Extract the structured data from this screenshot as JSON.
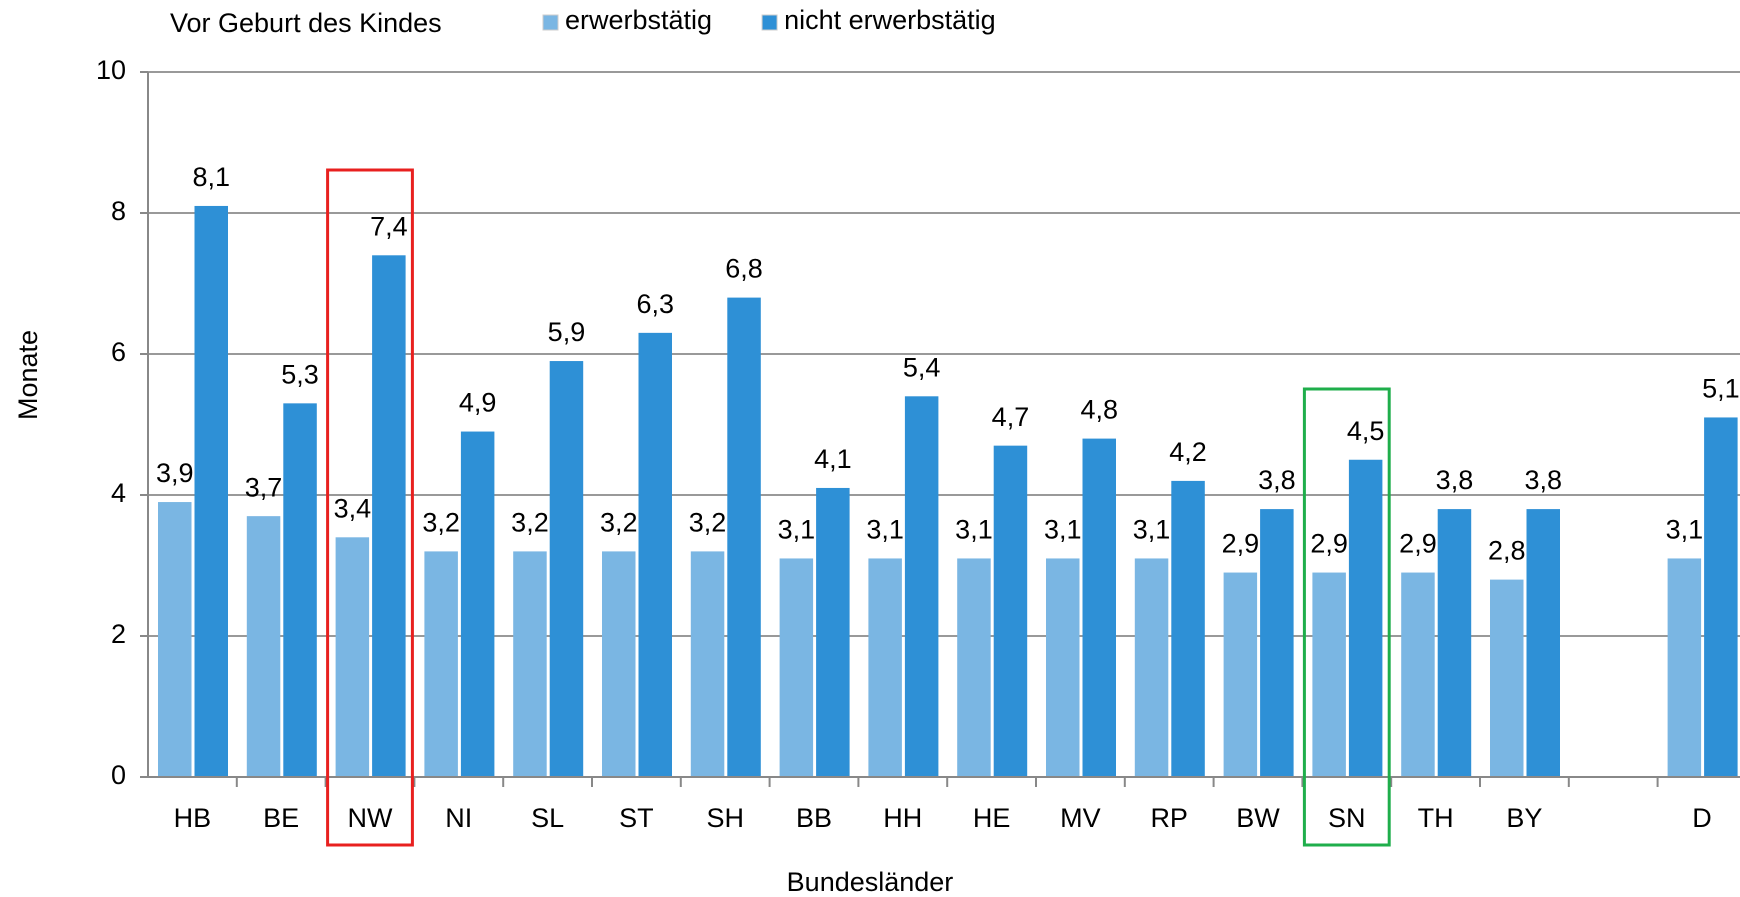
{
  "chart_data": {
    "type": "bar",
    "legend_title": "Vor Geburt des Kindes",
    "x_label": "Bundesländer",
    "y_label": "Monate",
    "categories": [
      "HB",
      "BE",
      "NW",
      "NI",
      "SL",
      "ST",
      "SH",
      "BB",
      "HH",
      "HE",
      "MV",
      "RP",
      "BW",
      "SN",
      "TH",
      "BY",
      null,
      "D"
    ],
    "series": [
      {
        "name": "erwerbstätig",
        "color": "#7ab6e3",
        "values": [
          3.9,
          3.7,
          3.4,
          3.2,
          3.2,
          3.2,
          3.2,
          3.1,
          3.1,
          3.1,
          3.1,
          3.1,
          2.9,
          2.9,
          2.9,
          2.8,
          null,
          3.1
        ],
        "value_labels": [
          "3,9",
          "3,7",
          "3,4",
          "3,2",
          "3,2",
          "3,2",
          "3,2",
          "3,1",
          "3,1",
          "3,1",
          "3,1",
          "3,1",
          "2,9",
          "2,9",
          "2,9",
          "2,8",
          null,
          "3,1"
        ]
      },
      {
        "name": "nicht erwerbstätig",
        "color": "#2e90d6",
        "values": [
          8.1,
          5.3,
          7.4,
          4.9,
          5.9,
          6.3,
          6.8,
          4.1,
          5.4,
          4.7,
          4.8,
          4.2,
          3.8,
          4.5,
          3.8,
          3.8,
          null,
          5.1
        ],
        "value_labels": [
          "8,1",
          "5,3",
          "7,4",
          "4,9",
          "5,9",
          "6,3",
          "6,8",
          "4,1",
          "5,4",
          "4,7",
          "4,8",
          "4,2",
          "3,8",
          "4,5",
          "3,8",
          "3,8",
          null,
          "5,1"
        ]
      }
    ],
    "ylim": [
      0,
      10
    ],
    "yticks": [
      0,
      2,
      4,
      6,
      8,
      10
    ],
    "grid": true
  }
}
